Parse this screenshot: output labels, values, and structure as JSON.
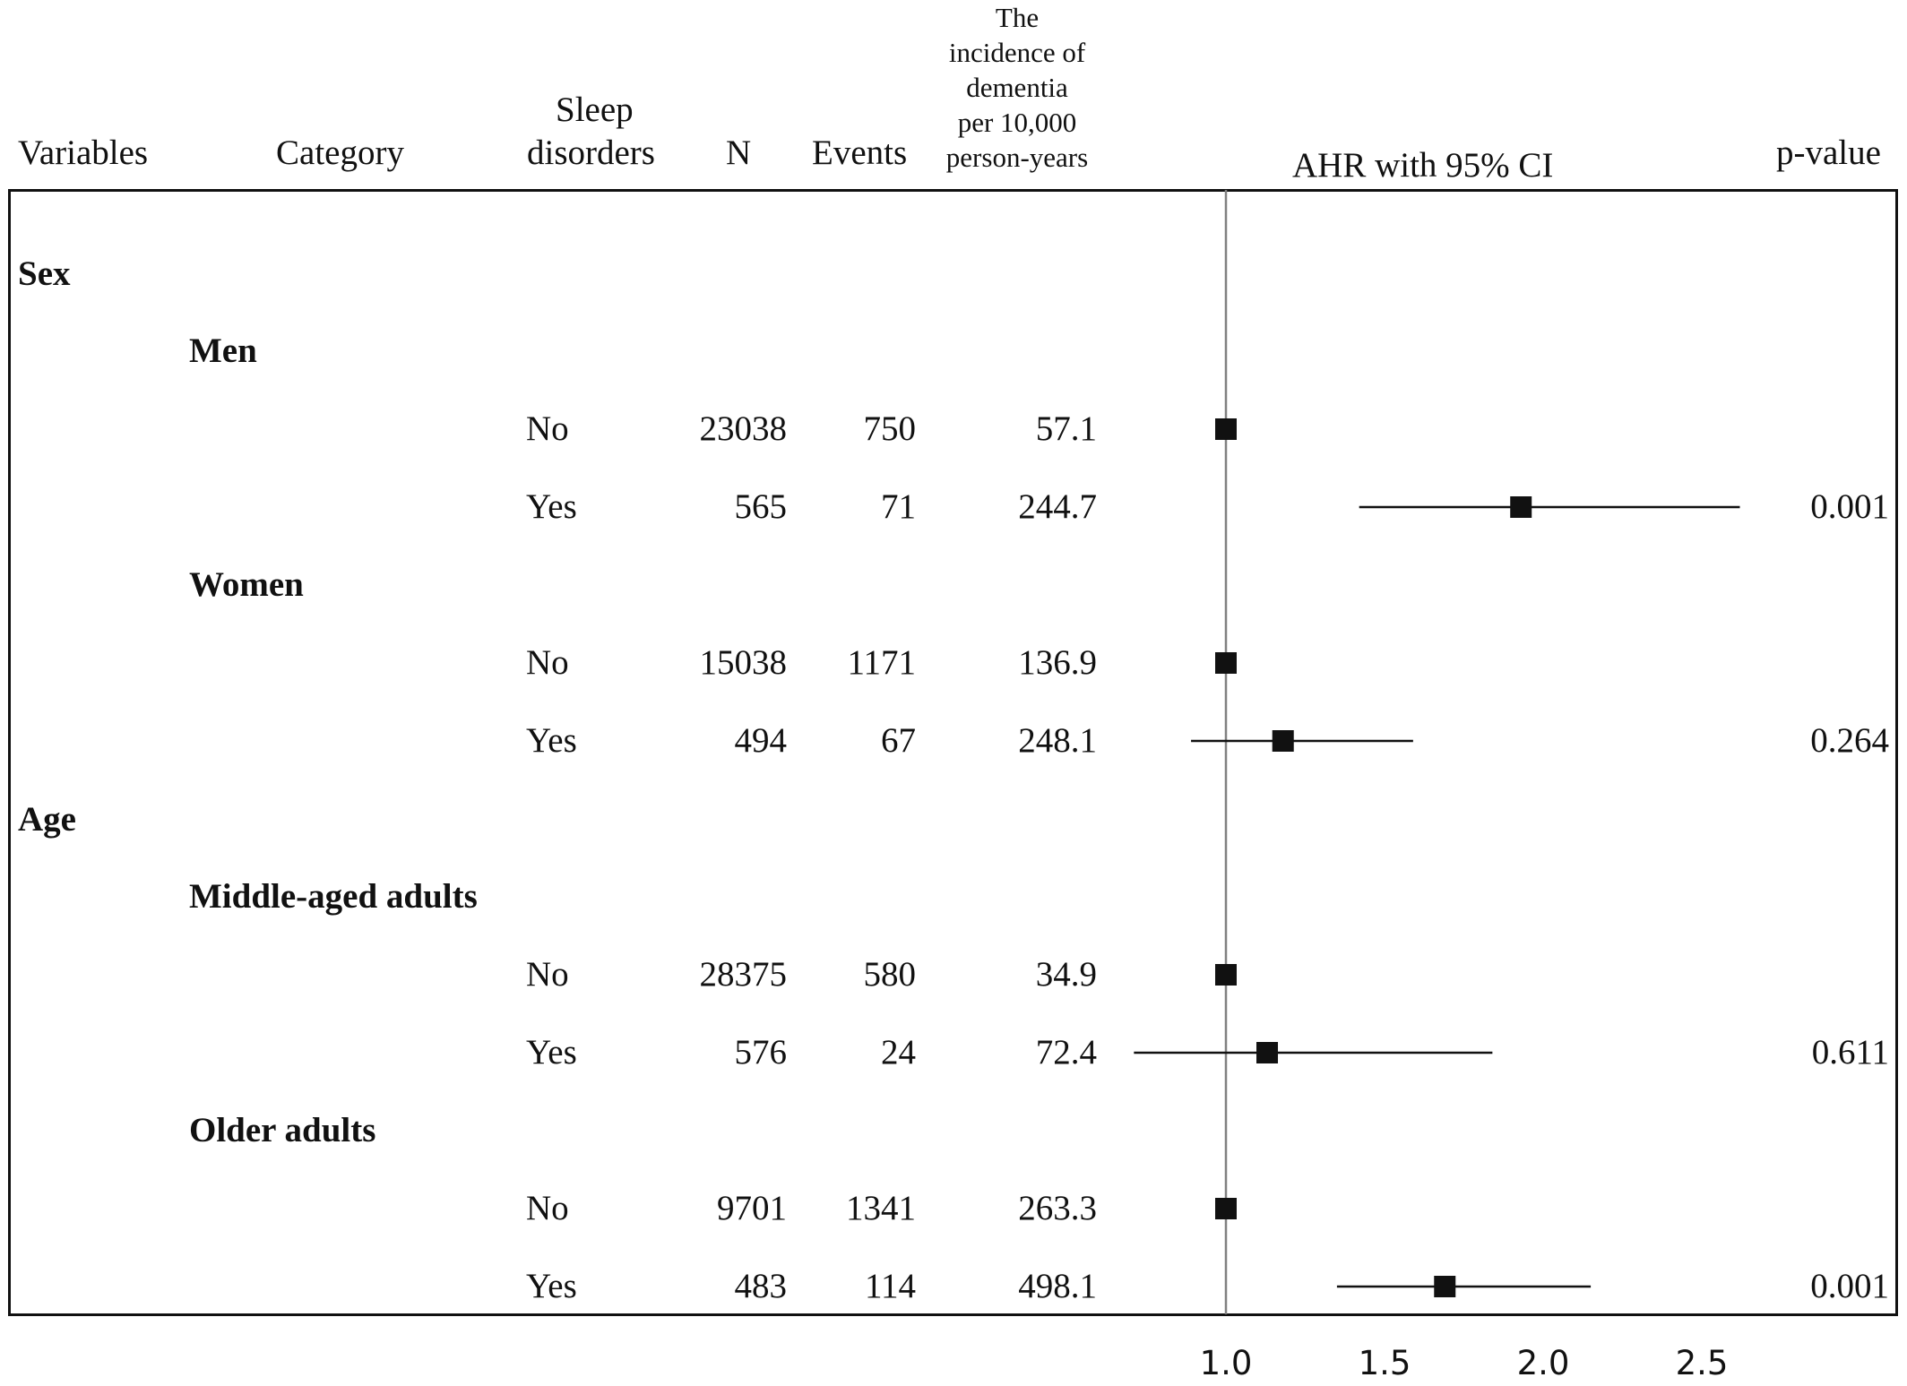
{
  "headers": {
    "variables": "Variables",
    "category": "Category",
    "sleep_line1": "Sleep",
    "sleep_line2": "disorders",
    "n": "N",
    "events": "Events",
    "incidence_l1": "The",
    "incidence_l2": "incidence of",
    "incidence_l3": "dementia",
    "incidence_l4": "per 10,000",
    "incidence_l5": "person-years",
    "ahr": "AHR with 95% CI",
    "pvalue": "p-value"
  },
  "groups": [
    {
      "label": "Sex"
    },
    {
      "label": "Age"
    }
  ],
  "categories": [
    {
      "label": "Men"
    },
    {
      "label": "Women"
    },
    {
      "label": "Middle-aged adults"
    },
    {
      "label": "Older adults"
    }
  ],
  "rows": [
    {
      "sleep": "No",
      "n": "23038",
      "events": "750",
      "incidence": "57.1",
      "pvalue": ""
    },
    {
      "sleep": "Yes",
      "n": "565",
      "events": "71",
      "incidence": "244.7",
      "pvalue": "0.001"
    },
    {
      "sleep": "No",
      "n": "15038",
      "events": "1171",
      "incidence": "136.9",
      "pvalue": ""
    },
    {
      "sleep": "Yes",
      "n": "494",
      "events": "67",
      "incidence": "248.1",
      "pvalue": "0.264"
    },
    {
      "sleep": "No",
      "n": "28375",
      "events": "580",
      "incidence": "34.9",
      "pvalue": ""
    },
    {
      "sleep": "Yes",
      "n": "576",
      "events": "24",
      "incidence": "72.4",
      "pvalue": "0.611"
    },
    {
      "sleep": "No",
      "n": "9701",
      "events": "1341",
      "incidence": "263.3",
      "pvalue": ""
    },
    {
      "sleep": "Yes",
      "n": "483",
      "events": "114",
      "incidence": "498.1",
      "pvalue": "0.001"
    }
  ],
  "chart_data": {
    "type": "forest",
    "x_ticks": [
      "1.0",
      "1.5",
      "2.0",
      "2.5"
    ],
    "xlim": [
      0.7,
      3.05
    ],
    "reference_line": 1.0,
    "points": [
      {
        "ahr": 1.0,
        "lo": 1.0,
        "hi": 1.0
      },
      {
        "ahr": 1.93,
        "lo": 1.42,
        "hi": 2.62
      },
      {
        "ahr": 1.0,
        "lo": 1.0,
        "hi": 1.0
      },
      {
        "ahr": 1.18,
        "lo": 0.89,
        "hi": 1.59
      },
      {
        "ahr": 1.0,
        "lo": 1.0,
        "hi": 1.0
      },
      {
        "ahr": 1.13,
        "lo": 0.71,
        "hi": 1.84
      },
      {
        "ahr": 1.0,
        "lo": 1.0,
        "hi": 1.0
      },
      {
        "ahr": 1.69,
        "lo": 1.35,
        "hi": 2.15
      }
    ],
    "colors": {
      "marker": "#111111",
      "reference_line": "#808080"
    }
  }
}
